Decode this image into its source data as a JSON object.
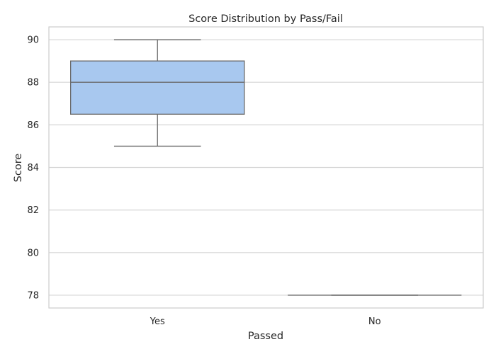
{
  "chart_data": {
    "type": "box",
    "title": "Score Distribution by Pass/Fail",
    "xlabel": "Passed",
    "ylabel": "Score",
    "categories": [
      "Yes",
      "No"
    ],
    "boxes": [
      {
        "category": "Yes",
        "whisker_low": 85,
        "q1": 86.5,
        "median": 88,
        "q3": 89,
        "whisker_high": 90
      },
      {
        "category": "No",
        "whisker_low": 78,
        "q1": 78,
        "median": 78,
        "q3": 78,
        "whisker_high": 78
      }
    ],
    "ylim": [
      77.4,
      90.6
    ],
    "yticks": [
      78,
      80,
      82,
      84,
      86,
      88,
      90
    ],
    "grid": true,
    "colors": {
      "box_fill": "#a8c8ef",
      "box_edge": "#6b6b6b",
      "grid": "#d5d5d5",
      "frame": "#cccccc"
    }
  }
}
